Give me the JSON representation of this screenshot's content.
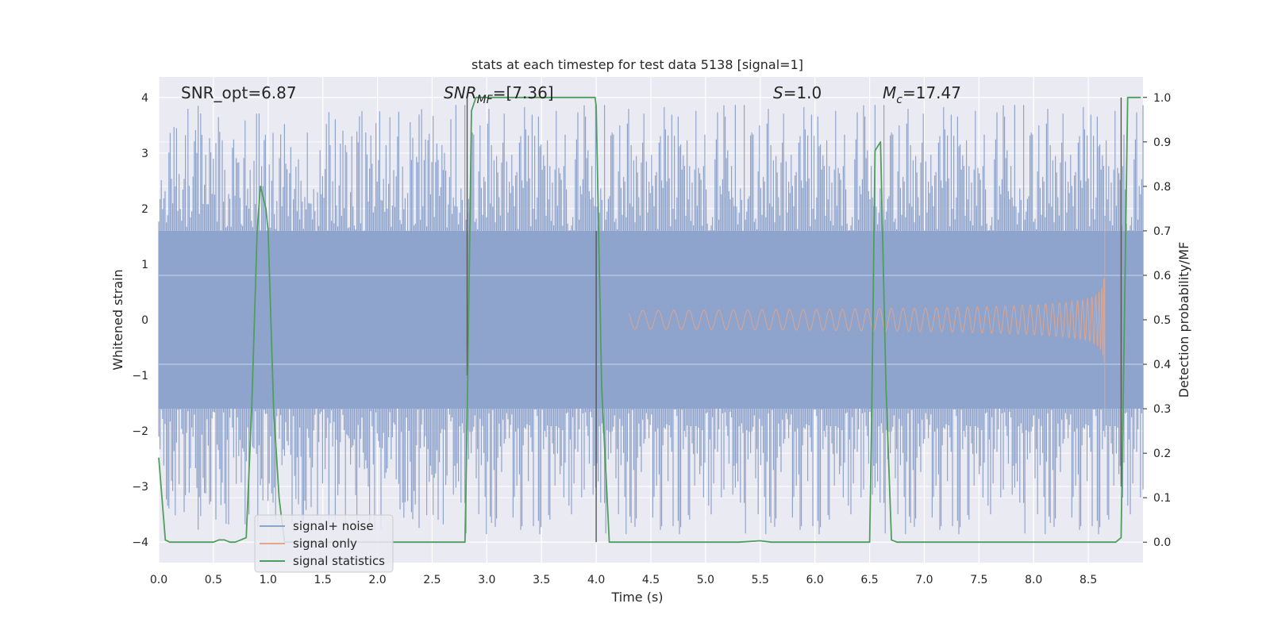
{
  "chart_data": {
    "type": "line",
    "title": "stats at each timestep for test data 5138 [signal=1]",
    "xlabel": "Time (s)",
    "ylabel_left": "Whitened strain",
    "ylabel_right": "Detection probability/MF",
    "xlim": [
      0.0,
      9.0
    ],
    "ylim_left": [
      -4.37,
      4.37
    ],
    "ylim_right": [
      -0.046,
      1.046
    ],
    "x_ticks": [
      "0.0",
      "0.5",
      "1.0",
      "1.5",
      "2.0",
      "2.5",
      "3.0",
      "3.5",
      "4.0",
      "4.5",
      "5.0",
      "5.5",
      "6.0",
      "6.5",
      "7.0",
      "7.5",
      "8.0",
      "8.5"
    ],
    "y_ticks_left": [
      "4",
      "3",
      "2",
      "1",
      "0",
      "−1",
      "−2",
      "−3",
      "−4"
    ],
    "y_ticks_right": [
      "1.0",
      "0.9",
      "0.8",
      "0.7",
      "0.6",
      "0.5",
      "0.4",
      "0.3",
      "0.2",
      "0.1",
      "0.0"
    ],
    "grid": true,
    "legend_position": "lower-left",
    "annotations": {
      "snr_opt": "SNR_opt=6.87",
      "snr_mf_base": "SNR",
      "snr_mf_sub": "MF",
      "snr_mf_value": "=[7.36]",
      "s_var": "S",
      "s_value": "=1.0",
      "mc_var": "M",
      "mc_sub": "c",
      "mc_value": "=17.47"
    },
    "series": [
      {
        "name": "signal+ noise",
        "color": "#8fa4cc",
        "description_level_band": [
          -1.6,
          1.6
        ],
        "spike_range": [
          -4.0,
          4.0
        ]
      },
      {
        "name": "signal only",
        "color": "#e6a587",
        "chirp_start_time": 4.3,
        "merger_time": 8.65,
        "peak_amplitude": 1.75
      },
      {
        "name": "signal statistics",
        "color": "#4f9e5e",
        "axis": "right",
        "x": [
          0.0,
          0.06,
          0.1,
          0.2,
          0.3,
          0.4,
          0.5,
          0.55,
          0.6,
          0.65,
          0.7,
          0.75,
          0.8,
          0.85,
          0.9,
          0.93,
          0.96,
          0.98,
          1.0,
          1.05,
          1.1,
          1.15,
          1.2,
          2.8,
          2.82,
          2.86,
          2.9,
          2.95,
          3.0,
          3.5,
          3.99,
          4.0,
          4.05,
          4.12,
          4.5,
          5.0,
          5.2,
          5.3,
          5.5,
          5.6,
          6.0,
          6.5,
          6.52,
          6.55,
          6.6,
          6.65,
          6.7,
          6.75,
          7.0,
          8.0,
          8.5,
          8.75,
          8.8,
          8.83,
          8.86,
          8.92,
          8.98
        ],
        "values": [
          0.19,
          0.005,
          0.0,
          0.0,
          0.0,
          0.0,
          0.0,
          0.005,
          0.005,
          0.0,
          0.0,
          0.005,
          0.01,
          0.3,
          0.7,
          0.8,
          0.77,
          0.75,
          0.7,
          0.3,
          0.1,
          0.0,
          0.0,
          0.0,
          0.27,
          0.97,
          1.0,
          1.0,
          1.0,
          1.0,
          1.0,
          0.98,
          0.35,
          0.0,
          0.0,
          0.0,
          0.0,
          0.0,
          0.003,
          0.0,
          0.0,
          0.0,
          0.3,
          0.88,
          0.9,
          0.35,
          0.005,
          0.0,
          0.0,
          0.0,
          0.0,
          0.0,
          0.01,
          0.5,
          1.0,
          1.0,
          1.0
        ]
      }
    ],
    "vertical_markers": [
      {
        "x": 2.82,
        "y_from": -1.0,
        "y_to": 4.0,
        "color": "#555555"
      },
      {
        "x": 4.0,
        "y_from": -4.0,
        "y_to": 1.6,
        "color": "#555555"
      },
      {
        "x": 8.8,
        "y_from": -3.0,
        "y_to": 4.0,
        "color": "#555555"
      }
    ]
  }
}
